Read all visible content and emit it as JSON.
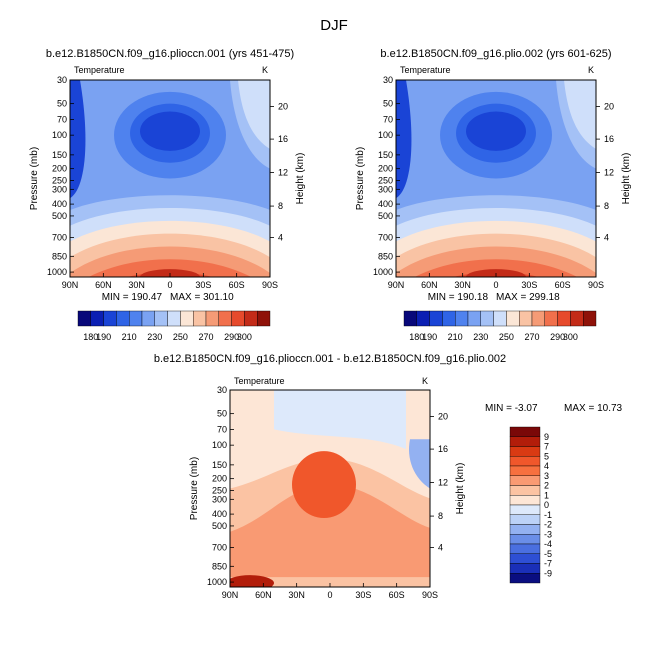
{
  "figure": {
    "title": "DJF"
  },
  "chart_data": [
    {
      "type": "contour",
      "panel": "top-left",
      "title": "b.e12.B1850CN.f09_g16.plioccn.001 (yrs 451-475)",
      "variable": "Temperature",
      "units": "K",
      "xlabel": "",
      "ylabel": "Pressure (mb)",
      "y2label": "Height (km)",
      "x_ticks": [
        "90N",
        "60N",
        "30N",
        "0",
        "30S",
        "60S",
        "90S"
      ],
      "y_ticks": [
        "30",
        "50",
        "70",
        "100",
        "150",
        "200",
        "250",
        "300",
        "400",
        "500",
        "700",
        "850",
        "1000"
      ],
      "y2_ticks": [
        "20",
        "16",
        "12",
        "8",
        "4"
      ],
      "min_label": "MIN = 190.47",
      "max_label": "MAX = 301.10",
      "min": 190.47,
      "max": 301.1,
      "levels": [
        180,
        190,
        200,
        210,
        220,
        230,
        240,
        250,
        260,
        270,
        280,
        290,
        300
      ],
      "colorbar_labels": [
        "180",
        "190",
        "210",
        "230",
        "250",
        "270",
        "290",
        "300"
      ]
    },
    {
      "type": "contour",
      "panel": "top-right",
      "title": "b.e12.B1850CN.f09_g16.plio.002 (yrs 601-625)",
      "variable": "Temperature",
      "units": "K",
      "xlabel": "",
      "ylabel": "Pressure (mb)",
      "y2label": "Height (km)",
      "x_ticks": [
        "90N",
        "60N",
        "30N",
        "0",
        "30S",
        "60S",
        "90S"
      ],
      "y_ticks": [
        "30",
        "50",
        "70",
        "100",
        "150",
        "200",
        "250",
        "300",
        "400",
        "500",
        "700",
        "850",
        "1000"
      ],
      "y2_ticks": [
        "20",
        "16",
        "12",
        "8",
        "4"
      ],
      "min_label": "MIN = 190.18",
      "max_label": "MAX = 299.18",
      "min": 190.18,
      "max": 299.18,
      "levels": [
        180,
        190,
        200,
        210,
        220,
        230,
        240,
        250,
        260,
        270,
        280,
        290,
        300
      ],
      "colorbar_labels": [
        "180",
        "190",
        "210",
        "230",
        "250",
        "270",
        "290",
        "300"
      ]
    },
    {
      "type": "contour",
      "panel": "bottom",
      "title": "b.e12.B1850CN.f09_g16.plioccn.001 - b.e12.B1850CN.f09_g16.plio.002",
      "variable": "Temperature",
      "units": "K",
      "xlabel": "",
      "ylabel": "Pressure (mb)",
      "y2label": "Height (km)",
      "x_ticks": [
        "90N",
        "60N",
        "30N",
        "0",
        "30S",
        "60S",
        "90S"
      ],
      "y_ticks": [
        "30",
        "50",
        "70",
        "100",
        "150",
        "200",
        "250",
        "300",
        "400",
        "500",
        "700",
        "850",
        "1000"
      ],
      "y2_ticks": [
        "20",
        "16",
        "12",
        "8",
        "4"
      ],
      "min_label": "MIN = -3.07",
      "max_label": "MAX = 10.73",
      "min": -3.07,
      "max": 10.73,
      "levels": [
        -9,
        -7,
        -5,
        -4,
        -3,
        -2,
        -1,
        0,
        1,
        2,
        3,
        4,
        5,
        7,
        9
      ],
      "colorbar_labels": [
        "9",
        "7",
        "5",
        "4",
        "3",
        "2",
        "1",
        "0",
        "-1",
        "-2",
        "-3",
        "-4",
        "-5",
        "-7",
        "-9"
      ]
    }
  ],
  "colors": {
    "temp_scale": [
      "#08087a",
      "#0b1fb3",
      "#1a44d6",
      "#2f64e6",
      "#4f82ee",
      "#7aa2f2",
      "#a4c1f6",
      "#cfdffa",
      "#fbe6d6",
      "#f9c3a4",
      "#f59b76",
      "#f1704c",
      "#e64a2c",
      "#c32b18",
      "#8f1209"
    ],
    "diff_scale": [
      "#7a0808",
      "#b21d0a",
      "#d93a13",
      "#f0572b",
      "#f7703f",
      "#f99a73",
      "#fbc3a3",
      "#fde6d6",
      "#dde9fb",
      "#bcd2f7",
      "#93b1f1",
      "#6a8ee8",
      "#4a6fe0",
      "#2e4fd4",
      "#1a2fb8",
      "#0a0e80"
    ]
  }
}
